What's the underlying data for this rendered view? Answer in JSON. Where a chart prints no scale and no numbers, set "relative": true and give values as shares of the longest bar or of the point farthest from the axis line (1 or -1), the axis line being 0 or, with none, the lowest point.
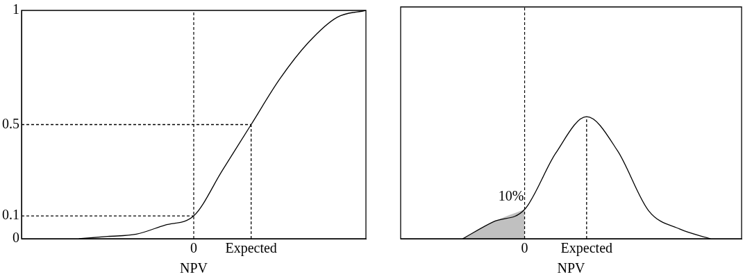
{
  "chart_data": [
    {
      "type": "line",
      "xlabel": "NPV",
      "categories": [
        null,
        null,
        null,
        null,
        null,
        null,
        "0",
        null,
        "Expected",
        null,
        null,
        null,
        null
      ],
      "ylim": [
        0,
        1
      ],
      "yticks": [
        0,
        0.1,
        0.5,
        1
      ],
      "grid": false,
      "legend": false,
      "marker": "none",
      "ref_lines": [
        {
          "axis": "x",
          "value": "0",
          "line_style": "dashed",
          "color": "#000000"
        }
      ],
      "series": [
        {
          "color": "#000000",
          "values": [
            null,
            null,
            0,
            0.01,
            0.02,
            0.06,
            0.1,
            0.3,
            0.5,
            0.7,
            0.86,
            0.97,
            1
          ]
        },
        {
          "color": "#000000",
          "line_style": "dashed",
          "values": [
            0.1,
            0.1,
            0.1,
            0.1,
            0.1,
            0.1,
            0.1,
            null,
            null,
            null,
            null,
            null,
            null
          ]
        },
        {
          "color": "#000000",
          "line_style": "dashed",
          "values": [
            0.5,
            0.5,
            0.5,
            0.5,
            0.5,
            0.5,
            0.5,
            0.5,
            0.5,
            null,
            null,
            null,
            null
          ]
        },
        {
          "color": "#000000",
          "line_style": "dashed",
          "x": [
            "Expected",
            "Expected"
          ],
          "values": [
            0,
            0.5
          ]
        }
      ]
    },
    {
      "type": "line",
      "xlabel": "NPV",
      "relative": true,
      "tick_labels": "x",
      "categories": [
        null,
        null,
        null,
        null,
        "0",
        null,
        "Expected",
        null,
        null,
        null,
        null,
        null
      ],
      "grid": false,
      "legend": false,
      "marker": "none",
      "ref_lines": [
        {
          "axis": "x",
          "value": "0",
          "line_style": "dashed",
          "color": "#000000"
        }
      ],
      "annotations": [
        "10%"
      ],
      "series": [
        {
          "type": "area",
          "color": "#c0c0c0",
          "values": [
            null,
            null,
            0,
            0.14,
            0.24,
            null,
            null,
            null,
            null,
            null,
            null,
            null
          ]
        },
        {
          "color": "#000000",
          "values": [
            null,
            null,
            0,
            0.14,
            0.24,
            0.7,
            1,
            0.72,
            0.23,
            0.08,
            0,
            null
          ]
        },
        {
          "color": "#000000",
          "line_style": "dashed",
          "x": [
            "Expected",
            "Expected"
          ],
          "values": [
            0,
            1
          ]
        }
      ]
    }
  ]
}
